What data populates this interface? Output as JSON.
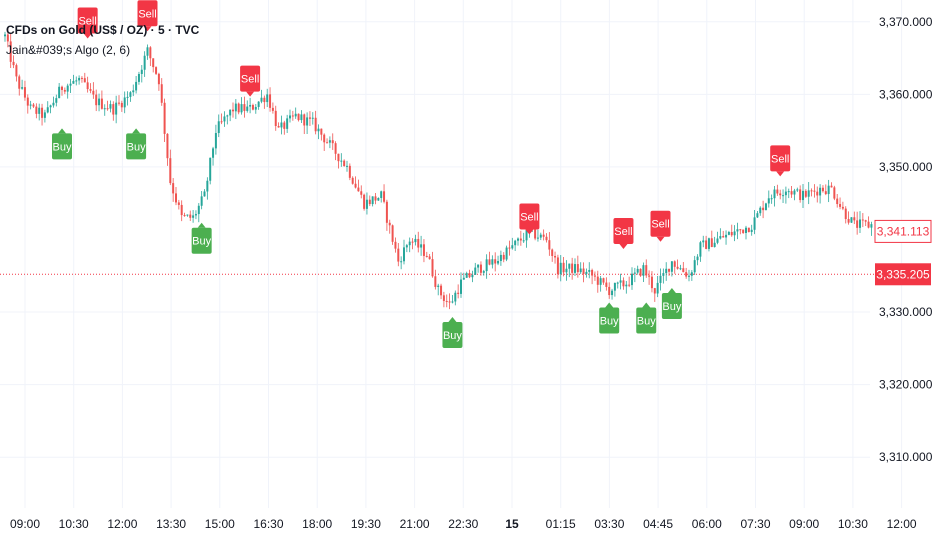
{
  "legend": {
    "title": "CFDs on Gold (US$ / OZ) · 5 · TVC",
    "indicator": "Jain&#039;s Algo (2, 6)"
  },
  "colors": {
    "up": "#26a69a",
    "down": "#ef5350",
    "buy": "#4caf50",
    "sell": "#f23645",
    "price_line": "#f23645",
    "grid": "#f0f3fa",
    "axis_text": "#131722"
  },
  "chart_data": {
    "type": "candlestick",
    "ylim": [
      3303,
      3373
    ],
    "y_ticks": [
      {
        "value": 3370,
        "label": "3,370.000"
      },
      {
        "value": 3360,
        "label": "3,360.000"
      },
      {
        "value": 3350,
        "label": "3,350.000"
      },
      {
        "value": 3330,
        "label": "3,330.000"
      },
      {
        "value": 3320,
        "label": "3,320.000"
      },
      {
        "value": 3310,
        "label": "3,310.000"
      }
    ],
    "x_ticks": [
      {
        "label": "09:00",
        "bold": false
      },
      {
        "label": "10:30",
        "bold": false
      },
      {
        "label": "12:00",
        "bold": false
      },
      {
        "label": "13:30",
        "bold": false
      },
      {
        "label": "15:00",
        "bold": false
      },
      {
        "label": "16:30",
        "bold": false
      },
      {
        "label": "18:00",
        "bold": false
      },
      {
        "label": "19:30",
        "bold": false
      },
      {
        "label": "21:00",
        "bold": false
      },
      {
        "label": "22:30",
        "bold": false
      },
      {
        "label": "15",
        "bold": true
      },
      {
        "label": "01:15",
        "bold": false
      },
      {
        "label": "03:30",
        "bold": false
      },
      {
        "label": "04:45",
        "bold": false
      },
      {
        "label": "06:00",
        "bold": false
      },
      {
        "label": "07:30",
        "bold": false
      },
      {
        "label": "09:00",
        "bold": false
      },
      {
        "label": "10:30",
        "bold": false
      },
      {
        "label": "12:00",
        "bold": false
      }
    ],
    "last_price": {
      "value": 3341.113,
      "label": "3,341.113"
    },
    "price_line": {
      "value": 3335.205,
      "label": "3,335.205"
    },
    "anchors": [
      [
        0,
        3368
      ],
      [
        4,
        3362
      ],
      [
        9,
        3358
      ],
      [
        14,
        3357
      ],
      [
        20,
        3361
      ],
      [
        26,
        3362
      ],
      [
        32,
        3359
      ],
      [
        38,
        3358
      ],
      [
        44,
        3360
      ],
      [
        50,
        3366
      ],
      [
        54,
        3362
      ],
      [
        58,
        3348
      ],
      [
        62,
        3343
      ],
      [
        66,
        3343
      ],
      [
        70,
        3346
      ],
      [
        74,
        3355
      ],
      [
        80,
        3358
      ],
      [
        86,
        3358
      ],
      [
        92,
        3360
      ],
      [
        96,
        3355
      ],
      [
        102,
        3357
      ],
      [
        108,
        3356
      ],
      [
        114,
        3353
      ],
      [
        120,
        3350
      ],
      [
        126,
        3345
      ],
      [
        132,
        3346
      ],
      [
        138,
        3337
      ],
      [
        142,
        3340
      ],
      [
        148,
        3338
      ],
      [
        152,
        3333
      ],
      [
        156,
        3331
      ],
      [
        160,
        3334
      ],
      [
        166,
        3336
      ],
      [
        172,
        3337
      ],
      [
        178,
        3339
      ],
      [
        184,
        3341
      ],
      [
        190,
        3340
      ],
      [
        194,
        3336
      ],
      [
        200,
        3336
      ],
      [
        206,
        3335
      ],
      [
        212,
        3333
      ],
      [
        218,
        3334
      ],
      [
        224,
        3336
      ],
      [
        228,
        3333
      ],
      [
        234,
        3337
      ],
      [
        240,
        3335
      ],
      [
        244,
        3339
      ],
      [
        250,
        3340
      ],
      [
        256,
        3341
      ],
      [
        262,
        3342
      ],
      [
        268,
        3346
      ],
      [
        274,
        3347
      ],
      [
        280,
        3346
      ],
      [
        286,
        3347
      ],
      [
        290,
        3347
      ],
      [
        294,
        3344
      ],
      [
        298,
        3342
      ],
      [
        304,
        3342
      ]
    ],
    "signals": [
      {
        "type": "Sell",
        "bar": 29,
        "price": 3367
      },
      {
        "type": "Sell",
        "bar": 50,
        "price": 3368
      },
      {
        "type": "Sell",
        "bar": 86,
        "price": 3359
      },
      {
        "type": "Sell",
        "bar": 184,
        "price": 3340
      },
      {
        "type": "Sell",
        "bar": 217,
        "price": 3338
      },
      {
        "type": "Sell",
        "bar": 230,
        "price": 3339
      },
      {
        "type": "Sell",
        "bar": 272,
        "price": 3348
      },
      {
        "type": "Buy",
        "bar": 20,
        "price": 3356
      },
      {
        "type": "Buy",
        "bar": 46,
        "price": 3356
      },
      {
        "type": "Buy",
        "bar": 69,
        "price": 3343
      },
      {
        "type": "Buy",
        "bar": 157,
        "price": 3330
      },
      {
        "type": "Buy",
        "bar": 212,
        "price": 3332
      },
      {
        "type": "Buy",
        "bar": 225,
        "price": 3332
      },
      {
        "type": "Buy",
        "bar": 234,
        "price": 3334
      }
    ],
    "signal_labels": {
      "buy": "Buy",
      "sell": "Sell"
    }
  }
}
